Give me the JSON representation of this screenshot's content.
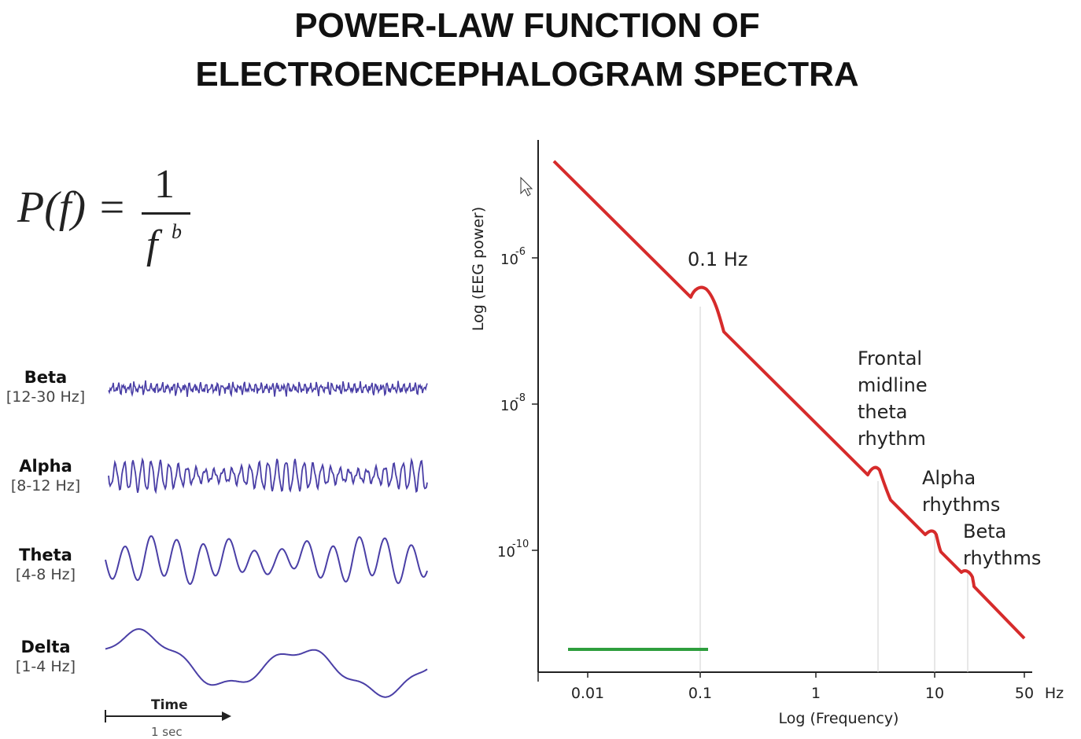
{
  "title_line1": "POWER-LAW FUNCTION OF",
  "title_line2": "ELECTROENCEPHALOGRAM SPECTRA",
  "formula": {
    "lhs": "P(f) =",
    "numerator": "1",
    "denominator_base": "f",
    "exponent": "b"
  },
  "waves": [
    {
      "name": "Beta",
      "range": "[12-30 Hz]"
    },
    {
      "name": "Alpha",
      "range": "[8-12 Hz]"
    },
    {
      "name": "Theta",
      "range": "[4-8 Hz]"
    },
    {
      "name": "Delta",
      "range": "[1-4 Hz]"
    }
  ],
  "time_axis": {
    "label": "Time",
    "scale": "1 sec"
  },
  "colors": {
    "wave": "#4a3fa6",
    "spectrum": "#d62b2b",
    "bar": "#2e9e3e",
    "axis": "#222222"
  },
  "spectrum": {
    "xlabel": "Log (Frequency)",
    "ylabel": "Log (EEG power)",
    "x_unit": "Hz",
    "x_ticks": [
      "0.01",
      "0.1",
      "1",
      "10",
      "50"
    ],
    "y_ticks": [
      {
        "base": "10",
        "exp": "-6"
      },
      {
        "base": "10",
        "exp": "-8"
      },
      {
        "base": "10",
        "exp": "-10"
      }
    ],
    "annotations": [
      "0.1 Hz",
      "Frontal",
      "midline",
      "theta",
      "rhythm",
      "Alpha",
      "rhythms",
      "Beta",
      "rhythms"
    ]
  }
}
